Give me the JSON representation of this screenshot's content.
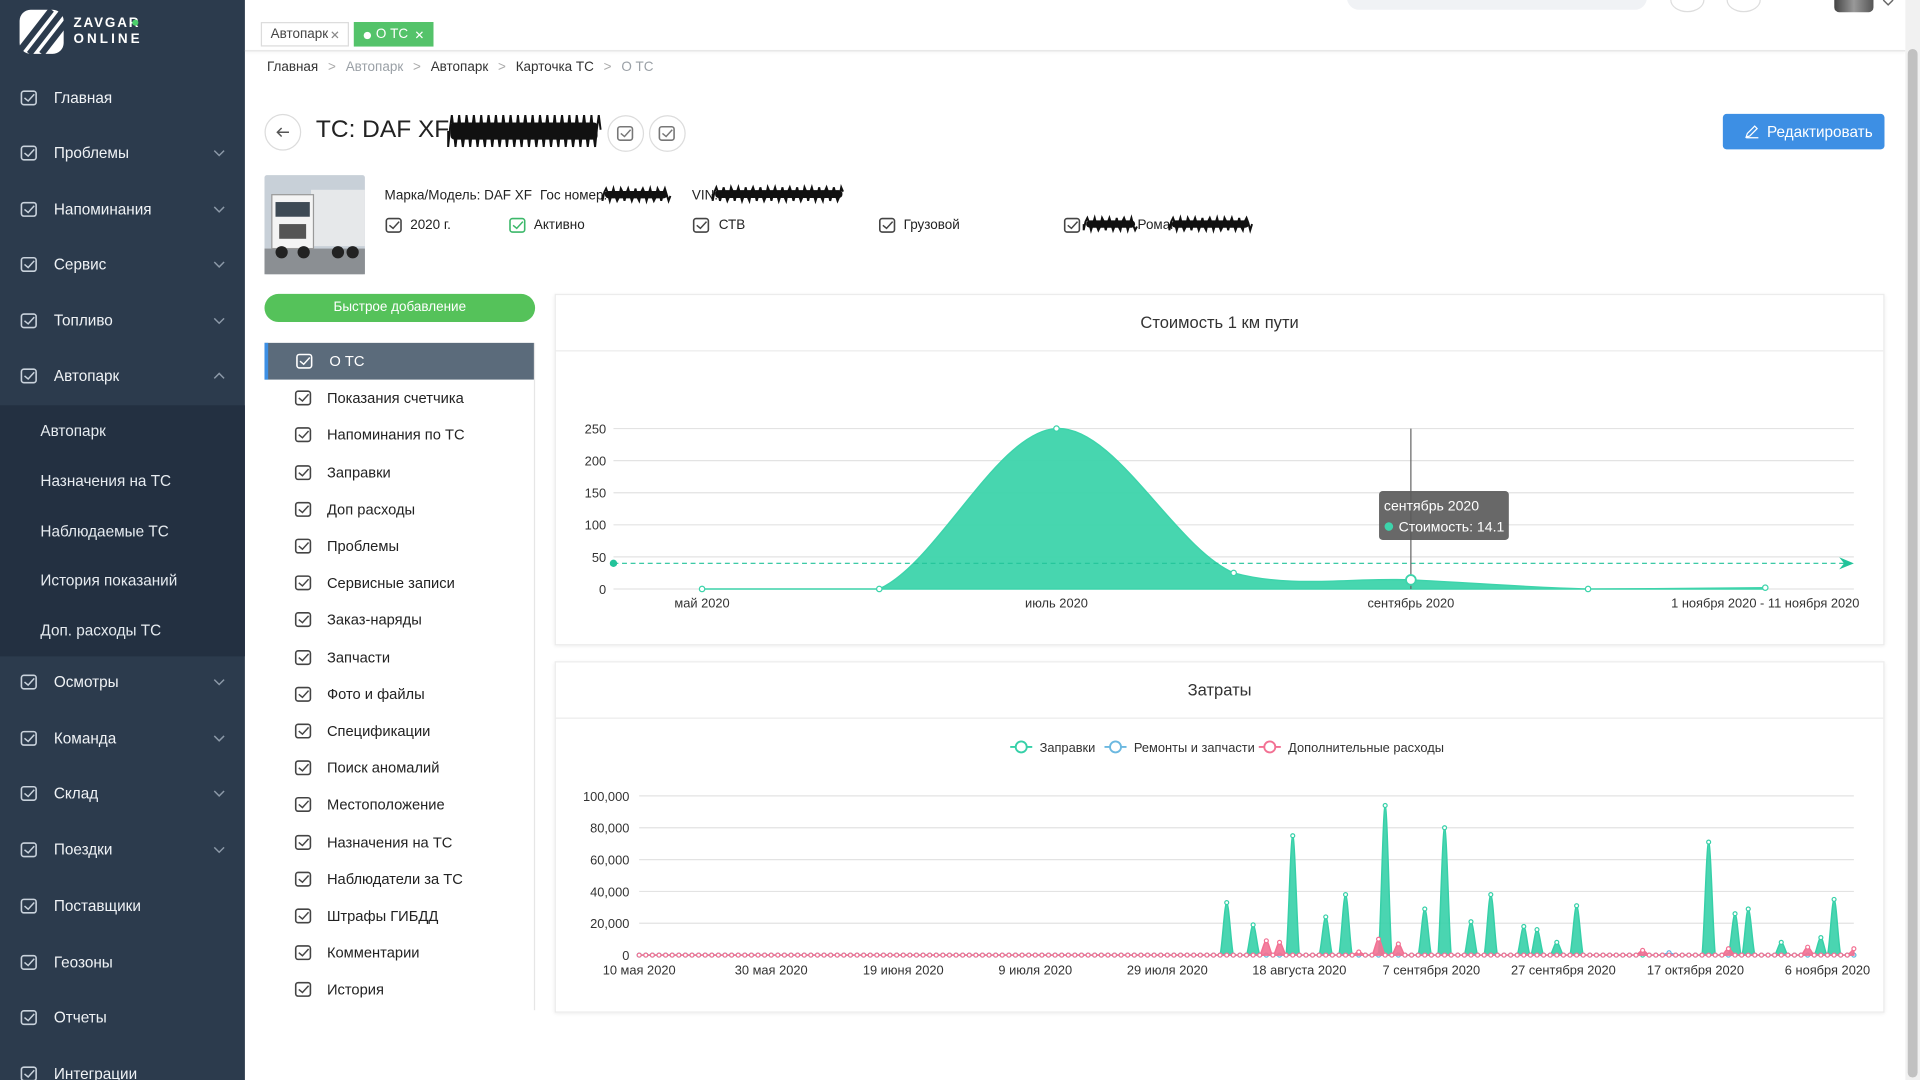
{
  "sidebar": {
    "logo": [
      "ZAVGAR",
      "ONLINE"
    ],
    "items": [
      {
        "label": "Главная"
      },
      {
        "label": "Проблемы",
        "has_submenu": true
      },
      {
        "label": "Напоминания",
        "has_submenu": true
      },
      {
        "label": "Сервис",
        "has_submenu": true
      },
      {
        "label": "Топливо",
        "has_submenu": true
      },
      {
        "label": "Автопарк",
        "has_submenu": true,
        "open": true,
        "submenu": [
          "Автопарк",
          "Назначения на ТС",
          "Наблюдаемые ТС",
          "История показаний",
          "Доп. расходы ТС"
        ]
      },
      {
        "label": "Осмотры",
        "has_submenu": true
      },
      {
        "label": "Команда",
        "has_submenu": true
      },
      {
        "label": "Склад",
        "has_submenu": true
      },
      {
        "label": "Поездки",
        "has_submenu": true
      },
      {
        "label": "Поставщики"
      },
      {
        "label": "Геозоны"
      },
      {
        "label": "Отчеты"
      },
      {
        "label": "Интеграции"
      }
    ]
  },
  "tabs": [
    "Автопарк",
    "О ТС"
  ],
  "breadcrumbs": {
    "separator": ">",
    "items": [
      "Главная",
      "Автопарк",
      "Автопарк",
      "Карточка ТС",
      "О ТС"
    ]
  },
  "vehicle": {
    "title": "ТС: DAF XF",
    "info": {
      "model": "Марка/Модель: DAF XF",
      "plate": "Гос номер:",
      "vin": "VIN:",
      "year": "2020 г.",
      "status": "Активно",
      "group": "СТВ",
      "kind": "Грузовой",
      "driver": "Роман"
    }
  },
  "edit_button": "Редактировать",
  "quick_add": "Быстрое добавление",
  "menu": [
    "О ТС",
    "Показания счетчика",
    "Напоминания по ТС",
    "Заправки",
    "Доп расходы",
    "Проблемы",
    "Сервисные записи",
    "Заказ-наряды",
    "Запчасти",
    "Фото и файлы",
    "Спецификации",
    "Поиск аномалий",
    "Местоположение",
    "Назначения на ТС",
    "Наблюдатели за ТС",
    "Штрафы ГИБДД",
    "Комментарии",
    "История"
  ],
  "charts": [
    {
      "type": "area",
      "title": "Стоимость 1 км пути",
      "categories": [
        "май 2020",
        null,
        "июль 2020",
        null,
        "сентябрь 2020",
        null,
        "1 ноября 2020 - 11 ноября 2020"
      ],
      "values": [
        0,
        0,
        250,
        25,
        14.1,
        0,
        2
      ],
      "color": "#3dd4ab",
      "ylim": [
        0,
        250
      ],
      "yticks": [
        0,
        50,
        100,
        150,
        200,
        250
      ],
      "grid": true,
      "average_line": 40,
      "tooltip": {
        "title": "сентябрь 2020",
        "text": "Стоимость: 14.1"
      }
    },
    {
      "type": "area",
      "title": "Затраты",
      "legend": "top",
      "grid": true,
      "ylim": [
        0,
        100000
      ],
      "yticks": [
        0,
        {
          "value": 20000,
          "label": "20,000"
        },
        {
          "value": 40000,
          "label": "40,000"
        },
        {
          "value": 60000,
          "label": "60,000"
        },
        {
          "value": 80000,
          "label": "80,000"
        },
        {
          "value": 100000,
          "label": "100,000"
        }
      ],
      "categories": [
        "10 мая 2020",
        null,
        null,
        null,
        null,
        null,
        null,
        null,
        null,
        null,
        null,
        null,
        null,
        null,
        null,
        null,
        null,
        null,
        null,
        null,
        "30 мая 2020",
        null,
        null,
        null,
        null,
        null,
        null,
        null,
        null,
        null,
        null,
        null,
        null,
        null,
        null,
        null,
        null,
        null,
        null,
        null,
        "19 июня 2020",
        null,
        null,
        null,
        null,
        null,
        null,
        null,
        null,
        null,
        null,
        null,
        null,
        null,
        null,
        null,
        null,
        null,
        null,
        null,
        "9 июля 2020",
        null,
        null,
        null,
        null,
        null,
        null,
        null,
        null,
        null,
        null,
        null,
        null,
        null,
        null,
        null,
        null,
        null,
        null,
        null,
        "29 июля 2020",
        null,
        null,
        null,
        null,
        null,
        null,
        null,
        null,
        null,
        null,
        null,
        null,
        null,
        null,
        null,
        null,
        null,
        null,
        null,
        "18 августа 2020",
        null,
        null,
        null,
        null,
        null,
        null,
        null,
        null,
        null,
        null,
        null,
        null,
        null,
        null,
        null,
        null,
        null,
        null,
        null,
        "7 сентября 2020",
        null,
        null,
        null,
        null,
        null,
        null,
        null,
        null,
        null,
        null,
        null,
        null,
        null,
        null,
        null,
        null,
        null,
        null,
        null,
        "27 сентября 2020",
        null,
        null,
        null,
        null,
        null,
        null,
        null,
        null,
        null,
        null,
        null,
        null,
        null,
        null,
        null,
        null,
        null,
        null,
        null,
        "17 октября 2020",
        null,
        null,
        null,
        null,
        null,
        null,
        null,
        null,
        null,
        null,
        null,
        null,
        null,
        null,
        null,
        null,
        null,
        null,
        null,
        "6 ноября 2020",
        null,
        null,
        null,
        null
      ],
      "series": [
        {
          "name": "Заправки",
          "color": "#36d0a8",
          "values": [
            0,
            0,
            0,
            0,
            0,
            0,
            0,
            0,
            0,
            0,
            0,
            0,
            0,
            0,
            0,
            0,
            0,
            0,
            0,
            0,
            0,
            0,
            0,
            0,
            0,
            0,
            0,
            0,
            0,
            0,
            0,
            0,
            0,
            0,
            0,
            0,
            0,
            0,
            0,
            0,
            0,
            0,
            0,
            0,
            0,
            0,
            0,
            0,
            0,
            0,
            0,
            0,
            0,
            0,
            0,
            0,
            0,
            0,
            0,
            0,
            0,
            0,
            0,
            0,
            0,
            0,
            0,
            0,
            0,
            0,
            0,
            0,
            0,
            0,
            0,
            0,
            0,
            0,
            0,
            0,
            0,
            0,
            0,
            0,
            0,
            0,
            0,
            0,
            0,
            33000,
            0,
            0,
            0,
            19000,
            0,
            0,
            0,
            0,
            0,
            75000,
            0,
            0,
            0,
            0,
            24000,
            0,
            0,
            38000,
            0,
            0,
            0,
            0,
            0,
            94000,
            0,
            0,
            0,
            0,
            0,
            29000,
            0,
            0,
            80000,
            0,
            0,
            0,
            21000,
            0,
            0,
            38000,
            0,
            0,
            0,
            0,
            18000,
            0,
            16000,
            0,
            0,
            8000,
            0,
            0,
            31000,
            0,
            0,
            0,
            0,
            0,
            0,
            0,
            0,
            0,
            0,
            0,
            0,
            0,
            0,
            0,
            0,
            0,
            0,
            0,
            71000,
            0,
            0,
            0,
            26000,
            0,
            29000,
            0,
            0,
            0,
            0,
            8000,
            0,
            0,
            0,
            0,
            0,
            11000,
            0,
            35000,
            0,
            0,
            0
          ]
        },
        {
          "name": "Ремонты и запчасти",
          "color": "#6bb8e0",
          "values": [
            0,
            0,
            0,
            0,
            0,
            0,
            0,
            0,
            0,
            0,
            0,
            0,
            0,
            0,
            0,
            0,
            0,
            0,
            0,
            0,
            0,
            0,
            0,
            0,
            0,
            0,
            0,
            0,
            0,
            0,
            0,
            0,
            0,
            0,
            0,
            0,
            0,
            0,
            0,
            0,
            0,
            0,
            0,
            0,
            0,
            0,
            0,
            0,
            0,
            0,
            0,
            0,
            0,
            0,
            0,
            0,
            0,
            0,
            0,
            0,
            0,
            0,
            0,
            0,
            0,
            0,
            0,
            0,
            0,
            0,
            0,
            0,
            0,
            0,
            0,
            0,
            0,
            0,
            0,
            0,
            0,
            0,
            0,
            0,
            0,
            0,
            0,
            0,
            0,
            0,
            0,
            0,
            0,
            0,
            0,
            0,
            0,
            0,
            0,
            0,
            0,
            0,
            0,
            0,
            0,
            0,
            0,
            0,
            0,
            0,
            0,
            0,
            0,
            0,
            0,
            0,
            0,
            0,
            0,
            0,
            0,
            0,
            0,
            0,
            0,
            0,
            0,
            0,
            0,
            0,
            0,
            0,
            0,
            0,
            0,
            0,
            0,
            0,
            0,
            0,
            0,
            0,
            0,
            0,
            0,
            0,
            0,
            0,
            0,
            0,
            0,
            0,
            1500,
            0,
            0,
            0,
            1500,
            0,
            0,
            0,
            0,
            0,
            0,
            0,
            0,
            0,
            0,
            0,
            0,
            0,
            0,
            0,
            0,
            0,
            0,
            0,
            0,
            0,
            0,
            0,
            0,
            0,
            0,
            0,
            0
          ]
        },
        {
          "name": "Дополнительные расходы",
          "color": "#f27193",
          "values": [
            0,
            0,
            0,
            0,
            0,
            0,
            0,
            0,
            0,
            0,
            0,
            0,
            0,
            0,
            0,
            0,
            0,
            0,
            0,
            0,
            0,
            0,
            0,
            0,
            0,
            0,
            0,
            0,
            0,
            0,
            0,
            0,
            0,
            0,
            0,
            0,
            0,
            0,
            0,
            0,
            0,
            0,
            0,
            0,
            0,
            0,
            0,
            0,
            0,
            0,
            0,
            0,
            0,
            0,
            0,
            0,
            0,
            0,
            0,
            0,
            0,
            0,
            0,
            0,
            0,
            0,
            0,
            0,
            0,
            0,
            0,
            0,
            0,
            0,
            0,
            0,
            0,
            0,
            0,
            0,
            0,
            0,
            0,
            0,
            0,
            0,
            0,
            0,
            0,
            0,
            0,
            0,
            0,
            0,
            0,
            9000,
            0,
            8000,
            0,
            0,
            0,
            0,
            0,
            0,
            0,
            0,
            0,
            0,
            0,
            2000,
            0,
            0,
            10000,
            0,
            0,
            7000,
            0,
            0,
            0,
            0,
            0,
            0,
            0,
            0,
            0,
            0,
            0,
            0,
            0,
            0,
            0,
            0,
            0,
            0,
            0,
            0,
            0,
            0,
            0,
            0,
            0,
            0,
            0,
            0,
            0,
            0,
            0,
            0,
            0,
            0,
            0,
            0,
            3000,
            0,
            0,
            0,
            0,
            0,
            0,
            0,
            0,
            0,
            0,
            0,
            0,
            4000,
            0,
            0,
            0,
            0,
            0,
            0,
            0,
            0,
            0,
            0,
            0,
            5000,
            0,
            0,
            0,
            0,
            0,
            0,
            4000
          ]
        }
      ]
    }
  ]
}
